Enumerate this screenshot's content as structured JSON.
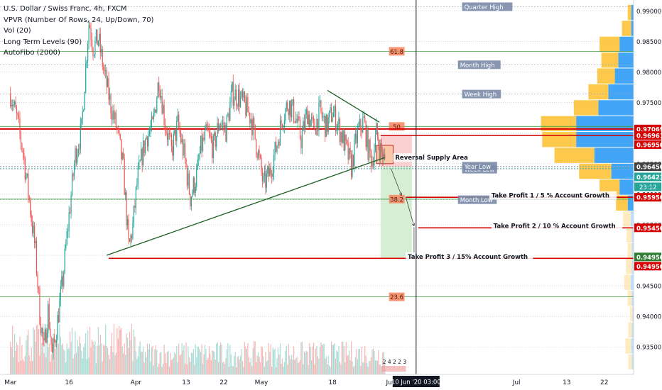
{
  "legend": {
    "title": "U.S. Dollar / Swiss Franc, 4h, FXCM",
    "vpvr": "VPVR (Number Of Rows, 24, Up/Down, 70)",
    "vol": "Vol (20)",
    "ltl": "Long Term Levels (90)",
    "fibo": "AutoFibo (2000)"
  },
  "colors": {
    "up": "#26a69a",
    "down": "#ef5350",
    "vol_up": "#a8ddd7",
    "vol_down": "#f7b5b3",
    "red_line": "#d50000",
    "trend_line": "#1b5e20",
    "fib_line": "#43a047",
    "fib_label": "#f4845f",
    "level_label": "#7b8ba8",
    "grid": "#bdbdbd",
    "vp_up": "#42a5f5",
    "vp_down": "#fbc02d",
    "tp_zone": "#d6efd4",
    "sl_zone": "#fbd0d0"
  },
  "chart_data": {
    "type": "candlestick",
    "symbol": "U.S. Dollar / Swiss Franc",
    "timeframe": "4h",
    "ylim": [
      0.9305,
      0.9918
    ],
    "yticks": [
      0.99,
      0.985,
      0.98,
      0.975,
      0.97,
      0.965,
      0.96,
      0.955,
      0.95,
      0.945,
      0.94,
      0.935
    ],
    "ytick_labels": [
      "0.99000",
      "0.98500",
      "0.98000",
      "0.97500",
      "0.97000",
      "0.96500",
      "0.96000",
      "0.95500",
      "0.95000",
      "0.94500",
      "0.94000",
      "0.93500"
    ],
    "xticks": [
      {
        "label": "Mar",
        "x": 0.0
      },
      {
        "label": "16",
        "x": 14.0
      },
      {
        "label": "Apr",
        "x": 30.0
      },
      {
        "label": "13",
        "x": 42.0
      },
      {
        "label": "22",
        "x": 51.0
      },
      {
        "label": "May",
        "x": 60.0
      },
      {
        "label": "18",
        "x": 77.0
      },
      {
        "label": "Jun",
        "x": 91.0
      },
      {
        "label": "Jul",
        "x": 121.0
      },
      {
        "label": "13",
        "x": 133.0
      },
      {
        "label": "22",
        "x": 142.0
      }
    ],
    "xlim": [
      -2.5,
      149.0
    ],
    "cursor": {
      "x": 97.0,
      "label": "10 Jun '20   03:00"
    },
    "series_anchor": [
      [
        0.0,
        0.9765
      ],
      [
        1.5,
        0.9725
      ],
      [
        3.0,
        0.967
      ],
      [
        4.5,
        0.959
      ],
      [
        6.0,
        0.9505
      ],
      [
        7.0,
        0.9405
      ],
      [
        8.0,
        0.9345
      ],
      [
        9.0,
        0.941
      ],
      [
        10.0,
        0.9335
      ],
      [
        11.0,
        0.938
      ],
      [
        12.5,
        0.946
      ],
      [
        14.0,
        0.9565
      ],
      [
        15.5,
        0.9665
      ],
      [
        17.0,
        0.9705
      ],
      [
        18.0,
        0.981
      ],
      [
        18.8,
        0.9885
      ],
      [
        19.8,
        0.984
      ],
      [
        21.0,
        0.9855
      ],
      [
        22.5,
        0.9795
      ],
      [
        24.0,
        0.9745
      ],
      [
        25.5,
        0.9705
      ],
      [
        27.0,
        0.964
      ],
      [
        28.3,
        0.951
      ],
      [
        29.3,
        0.955
      ],
      [
        30.3,
        0.962
      ],
      [
        31.5,
        0.9665
      ],
      [
        32.5,
        0.9695
      ],
      [
        34.0,
        0.971
      ],
      [
        35.5,
        0.979
      ],
      [
        37.0,
        0.9715
      ],
      [
        38.5,
        0.967
      ],
      [
        40.0,
        0.9715
      ],
      [
        41.5,
        0.9665
      ],
      [
        43.0,
        0.9595
      ],
      [
        44.5,
        0.963
      ],
      [
        45.5,
        0.9675
      ],
      [
        47.0,
        0.97
      ],
      [
        48.5,
        0.9675
      ],
      [
        50.0,
        0.972
      ],
      [
        51.5,
        0.9705
      ],
      [
        53.0,
        0.9765
      ],
      [
        54.5,
        0.976
      ],
      [
        56.0,
        0.9745
      ],
      [
        57.5,
        0.9725
      ],
      [
        59.0,
        0.9675
      ],
      [
        60.5,
        0.9615
      ],
      [
        62.0,
        0.9635
      ],
      [
        63.5,
        0.9675
      ],
      [
        65.0,
        0.9725
      ],
      [
        66.5,
        0.975
      ],
      [
        68.0,
        0.973
      ],
      [
        69.5,
        0.969
      ],
      [
        71.0,
        0.9735
      ],
      [
        72.5,
        0.9705
      ],
      [
        74.0,
        0.9735
      ],
      [
        75.5,
        0.971
      ],
      [
        77.0,
        0.9735
      ],
      [
        78.5,
        0.971
      ],
      [
        80.0,
        0.968
      ],
      [
        81.5,
        0.9645
      ],
      [
        83.0,
        0.97
      ],
      [
        84.5,
        0.972
      ],
      [
        85.5,
        0.9675
      ],
      [
        86.5,
        0.9655
      ],
      [
        87.5,
        0.97
      ],
      [
        88.3,
        0.9675
      ],
      [
        89.0,
        0.9665
      ],
      [
        89.6,
        0.9645
      ]
    ],
    "volume_ylim": [
      0,
      1
    ],
    "levels": [
      {
        "price": 0.97069,
        "label": "0.97069",
        "style": "red-bold"
      },
      {
        "price": 0.96961,
        "label": "0.96961",
        "style": "red"
      },
      {
        "price": 0.9695,
        "label": "0.96950",
        "style": "red"
      },
      {
        "price": 0.9645,
        "label": "0.96450",
        "style": "gray"
      },
      {
        "price": 0.96423,
        "label": "0.96423",
        "style": "green"
      },
      {
        "price": 0.9595,
        "label": "0.95950",
        "style": "red"
      },
      {
        "price": 0.9545,
        "label": "0.95450",
        "style": "red"
      },
      {
        "price": 0.9495,
        "label": "0.94950",
        "style": "green"
      },
      {
        "price": 0.9495,
        "label": "0.94950",
        "style": "red"
      }
    ],
    "countdown_label": "23:12",
    "fib_levels": [
      {
        "price": 0.9834,
        "label": "61.8"
      },
      {
        "price": 0.9711,
        "label": "50"
      },
      {
        "price": 0.9592,
        "label": "38.2"
      },
      {
        "price": 0.9432,
        "label": "23.6"
      }
    ],
    "period_levels": [
      {
        "price": 0.9907,
        "label": "Quarter High",
        "x": 108
      },
      {
        "price": 0.9812,
        "label": "Month High",
        "x": 107
      },
      {
        "price": 0.9764,
        "label": "Week High",
        "x": 108
      },
      {
        "price": 0.9641,
        "label": "Week Low",
        "x": 108
      },
      {
        "price": 0.9591,
        "label": "Month Low",
        "x": 107
      },
      {
        "price": 0.9646,
        "label": "Year Low",
        "x": 108
      }
    ],
    "trendlines": [
      {
        "x1": 23.0,
        "y1": 0.95,
        "x2": 89.5,
        "y2": 0.966
      },
      {
        "x1": 75.8,
        "y1": 0.977,
        "x2": 88.2,
        "y2": 0.9718
      }
    ],
    "trade": {
      "entry_x": 88.5,
      "end_x": 96.0,
      "entry": 0.9645,
      "stop": 0.96961,
      "tp1": 0.9595,
      "tp2": 0.9545,
      "tp3": 0.9495,
      "supply_zone": {
        "x1": 87.5,
        "x2": 91.5,
        "top": 0.968,
        "bottom": 0.965
      }
    },
    "annotations": [
      {
        "text": "Reversal Supply Area",
        "x": 92.0,
        "price": 0.966
      },
      {
        "text": "Take Profit 1 / 5 % Account Growth",
        "x": 115.0,
        "price": 0.9598
      },
      {
        "text": "Take Profit 2 / 10 % Account Growth",
        "x": 115.5,
        "price": 0.9548
      },
      {
        "text": "Take Profit 3 / 15% Account Growth",
        "x": 95.0,
        "price": 0.9498
      }
    ],
    "extra_label": "2  4  2  2  3",
    "volume_profile": [
      {
        "price": 0.9897,
        "up": 0.06,
        "down": 0.04
      },
      {
        "price": 0.9871,
        "up": 0.16,
        "down": 0.04
      },
      {
        "price": 0.9845,
        "up": 0.34,
        "down": 0.24
      },
      {
        "price": 0.9819,
        "up": 0.29,
        "down": 0.26
      },
      {
        "price": 0.9793,
        "up": 0.3,
        "down": 0.32
      },
      {
        "price": 0.9767,
        "up": 0.34,
        "down": 0.43
      },
      {
        "price": 0.9741,
        "up": 0.42,
        "down": 0.6
      },
      {
        "price": 0.9715,
        "up": 0.6,
        "down": 0.98
      },
      {
        "price": 0.9689,
        "up": 0.58,
        "down": 0.98
      },
      {
        "price": 0.9663,
        "up": 0.68,
        "down": 0.67
      },
      {
        "price": 0.9637,
        "up": 0.55,
        "down": 0.38
      },
      {
        "price": 0.9611,
        "up": 0.34,
        "down": 0.24
      },
      {
        "price": 0.9585,
        "up": 0.2,
        "down": 0.1
      },
      {
        "price": 0.9559,
        "up": 0.13,
        "down": 0.05
      },
      {
        "price": 0.9533,
        "up": 0.09,
        "down": 0.03
      },
      {
        "price": 0.9507,
        "up": 0.07,
        "down": 0.03
      },
      {
        "price": 0.9481,
        "up": 0.1,
        "down": 0.03
      },
      {
        "price": 0.9455,
        "up": 0.11,
        "down": 0.05
      },
      {
        "price": 0.9429,
        "up": 0.07,
        "down": 0.03
      },
      {
        "price": 0.9403,
        "up": 0.04,
        "down": 0.02
      },
      {
        "price": 0.9377,
        "up": 0.06,
        "down": 0.03
      },
      {
        "price": 0.9351,
        "up": 0.1,
        "down": 0.04
      },
      {
        "price": 0.9325,
        "up": 0.06,
        "down": 0.03
      }
    ]
  }
}
